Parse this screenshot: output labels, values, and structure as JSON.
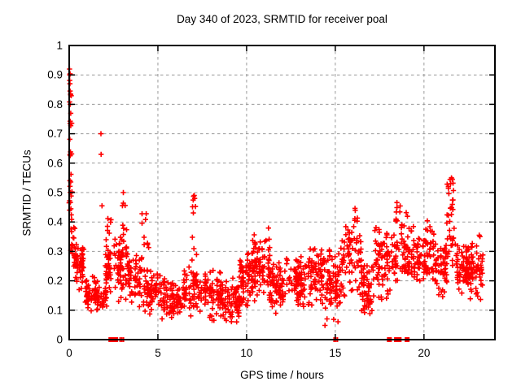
{
  "title": "Day 340 of 2023, SRMTID for receiver poal",
  "chart_data": {
    "type": "scatter",
    "title": "Day 340 of 2023, SRMTID for receiver poal",
    "xlabel": "GPS time / hours",
    "ylabel": "SRMTID / TECUs",
    "xlim": [
      0,
      24
    ],
    "ylim": [
      0,
      1
    ],
    "xticks": [
      0,
      5,
      10,
      15,
      20
    ],
    "yticks": [
      0,
      0.1,
      0.2,
      0.3,
      0.4,
      0.5,
      0.6,
      0.7,
      0.8,
      0.9,
      1
    ],
    "grid": true,
    "legend": "none",
    "marker": {
      "shape": "plus",
      "color": "#ff0000",
      "size": 7
    },
    "grid_color": "#9a9a9a",
    "axis_color": "#000000",
    "seed": 340,
    "bands": [
      [
        0.0,
        0.15,
        30,
        0.4,
        0.92,
        "flat"
      ],
      [
        0.05,
        0.4,
        22,
        0.22,
        0.42,
        "mid"
      ],
      [
        0.3,
        0.85,
        55,
        0.16,
        0.34,
        "mid"
      ],
      [
        0.8,
        1.65,
        65,
        0.09,
        0.22,
        "mid"
      ],
      [
        1.6,
        2.1,
        28,
        0.09,
        0.2,
        "mid"
      ],
      [
        2.05,
        2.6,
        42,
        0.14,
        0.36,
        "mid"
      ],
      [
        2.1,
        2.35,
        6,
        0.36,
        0.42,
        "flat"
      ],
      [
        2.55,
        3.3,
        50,
        0.12,
        0.36,
        "mid"
      ],
      [
        2.95,
        3.25,
        16,
        0.28,
        0.5,
        "flat"
      ],
      [
        3.3,
        4.1,
        55,
        0.1,
        0.3,
        "mid"
      ],
      [
        4.05,
        4.5,
        14,
        0.22,
        0.43,
        "flat"
      ],
      [
        4.2,
        5.2,
        65,
        0.08,
        0.25,
        "mid"
      ],
      [
        5.2,
        6.3,
        75,
        0.05,
        0.22,
        "mid"
      ],
      [
        6.3,
        7.3,
        65,
        0.07,
        0.26,
        "mid"
      ],
      [
        6.9,
        7.25,
        10,
        0.27,
        0.49,
        "flat"
      ],
      [
        7.3,
        8.6,
        85,
        0.06,
        0.25,
        "mid"
      ],
      [
        8.6,
        9.6,
        75,
        0.04,
        0.22,
        "mid"
      ],
      [
        9.6,
        10.35,
        65,
        0.1,
        0.31,
        "mid"
      ],
      [
        10.3,
        11.3,
        85,
        0.12,
        0.38,
        "mid"
      ],
      [
        11.3,
        12.1,
        65,
        0.08,
        0.28,
        "mid"
      ],
      [
        12.1,
        13.1,
        75,
        0.1,
        0.31,
        "mid"
      ],
      [
        13.1,
        14.4,
        85,
        0.1,
        0.32,
        "mid"
      ],
      [
        14.4,
        15.3,
        75,
        0.04,
        0.33,
        "mid"
      ],
      [
        15.3,
        16.5,
        80,
        0.12,
        0.4,
        "mid"
      ],
      [
        16.1,
        16.45,
        6,
        0.4,
        0.45,
        "flat"
      ],
      [
        16.5,
        17.2,
        55,
        0.05,
        0.28,
        "mid"
      ],
      [
        17.2,
        18.3,
        75,
        0.12,
        0.4,
        "mid"
      ],
      [
        18.3,
        19.3,
        75,
        0.15,
        0.43,
        "mid"
      ],
      [
        18.4,
        19.0,
        6,
        0.43,
        0.47,
        "flat"
      ],
      [
        19.3,
        20.6,
        85,
        0.17,
        0.42,
        "mid"
      ],
      [
        20.6,
        21.3,
        55,
        0.14,
        0.35,
        "mid"
      ],
      [
        21.3,
        21.8,
        34,
        0.25,
        0.55,
        "flat"
      ],
      [
        21.8,
        22.5,
        65,
        0.13,
        0.35,
        "mid"
      ],
      [
        22.5,
        23.3,
        65,
        0.12,
        0.37,
        "mid"
      ]
    ],
    "outliers": [
      [
        1.79,
        0.7
      ],
      [
        1.8,
        0.63
      ],
      [
        1.85,
        0.455
      ],
      [
        0.02,
        0.92
      ],
      [
        0.03,
        0.9
      ],
      [
        0.04,
        0.87
      ],
      [
        0.05,
        0.845
      ],
      [
        0.06,
        0.8
      ],
      [
        3.05,
        0.5
      ],
      [
        7.05,
        0.49
      ],
      [
        21.55,
        0.55
      ],
      [
        21.6,
        0.545
      ],
      [
        21.5,
        0.53
      ]
    ],
    "zero_markers": {
      "squares": [
        2.35,
        2.48,
        2.62,
        18.05,
        18.45,
        18.6,
        19.05
      ],
      "thin": [
        2.92,
        3.0,
        14.98,
        15.06
      ]
    }
  }
}
